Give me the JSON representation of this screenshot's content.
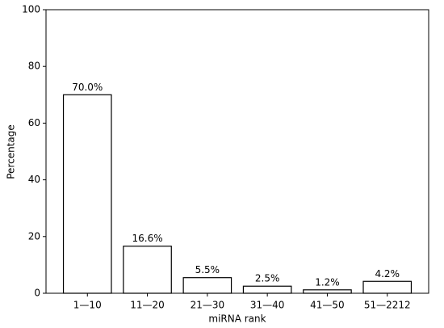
{
  "chart_data": {
    "type": "bar",
    "categories": [
      "1—10",
      "11—20",
      "21—30",
      "31—40",
      "41—50",
      "51—2212"
    ],
    "values": [
      70.0,
      16.6,
      5.5,
      2.5,
      1.2,
      4.2
    ],
    "value_labels": [
      "70.0%",
      "16.6%",
      "5.5%",
      "2.5%",
      "1.2%",
      "4.2%"
    ],
    "color": "#ffffff",
    "edgecolor": "#000000",
    "xlabel": "miRNA rank",
    "ylabel": "Percentage",
    "ylim": [
      0,
      100
    ],
    "yticks": [
      0,
      20,
      40,
      60,
      80,
      100
    ],
    "grid": false
  }
}
